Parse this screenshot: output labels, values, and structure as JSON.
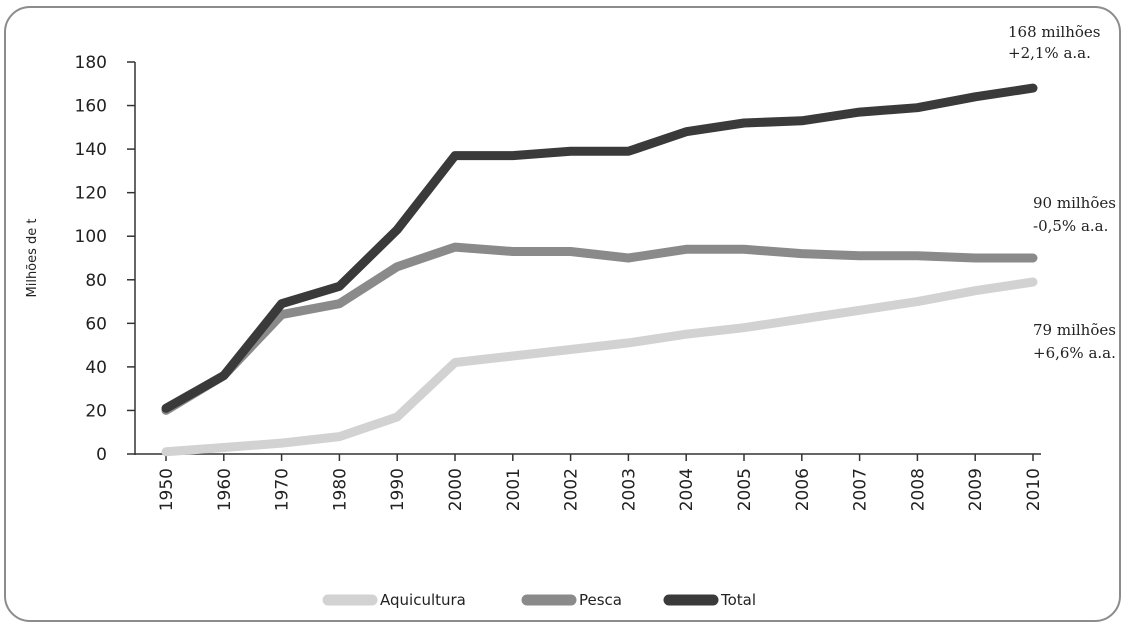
{
  "chart_data": {
    "type": "line",
    "ylabel": "Milhões de t",
    "ylim": [
      0,
      180
    ],
    "yticks": [
      0,
      20,
      40,
      60,
      80,
      100,
      120,
      140,
      160,
      180
    ],
    "categories": [
      "1950",
      "1960",
      "1970",
      "1980",
      "1990",
      "2000",
      "2001",
      "2002",
      "2003",
      "2004",
      "2005",
      "2006",
      "2007",
      "2008",
      "2009",
      "2010"
    ],
    "grid": false,
    "legend_position": "bottom",
    "series": [
      {
        "name": "Aquicultura",
        "color": "#d2d2d2",
        "values": [
          1,
          3,
          5,
          8,
          17,
          42,
          45,
          48,
          51,
          55,
          58,
          62,
          66,
          70,
          75,
          79
        ]
      },
      {
        "name": "Pesca",
        "color": "#8a8a8a",
        "values": [
          20,
          36,
          64,
          69,
          86,
          95,
          93,
          93,
          90,
          94,
          94,
          92,
          91,
          91,
          90,
          90
        ]
      },
      {
        "name": "Total",
        "color": "#3a3a3a",
        "values": [
          21,
          36,
          69,
          77,
          103,
          137,
          137,
          139,
          139,
          148,
          152,
          153,
          157,
          159,
          164,
          168
        ]
      }
    ],
    "annotations": [
      {
        "series": "Total",
        "line1": "168 milhões",
        "line2": "+2,1% a.a."
      },
      {
        "series": "Pesca",
        "line1": "90 milhões",
        "line2": "-0,5% a.a."
      },
      {
        "series": "Aquicultura",
        "line1": "79 milhões",
        "line2": "+6,6% a.a."
      }
    ]
  }
}
